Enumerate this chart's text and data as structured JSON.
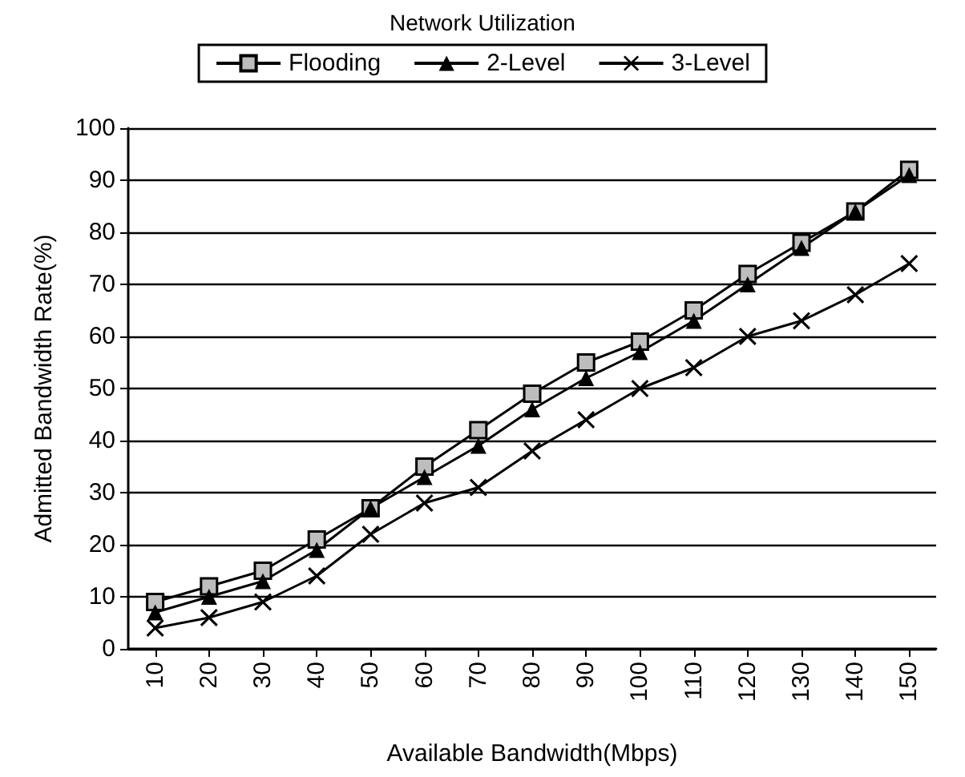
{
  "chart_data": {
    "type": "line",
    "title": "Network Utilization",
    "xlabel": "Available Bandwidth(Mbps)",
    "ylabel": "Admitted Bandwidth Rate(%)",
    "categories": [
      "10",
      "20",
      "30",
      "40",
      "50",
      "60",
      "70",
      "80",
      "90",
      "100",
      "110",
      "120",
      "130",
      "140",
      "150"
    ],
    "series": [
      {
        "name": "Flooding",
        "color": "#000000",
        "marker": "square",
        "values": [
          9,
          12,
          15,
          21,
          27,
          35,
          42,
          49,
          55,
          59,
          65,
          72,
          78,
          84,
          92
        ]
      },
      {
        "name": "2-Level",
        "color": "#000000",
        "marker": "triangle",
        "values": [
          7,
          10,
          13,
          19,
          27,
          33,
          39,
          46,
          52,
          57,
          63,
          70,
          77,
          84,
          91
        ]
      },
      {
        "name": "3-Level",
        "color": "#000000",
        "marker": "cross",
        "values": [
          4,
          6,
          9,
          14,
          22,
          28,
          31,
          38,
          44,
          50,
          54,
          60,
          63,
          68,
          74
        ]
      }
    ],
    "ylim": [
      0,
      100
    ],
    "yticks": [
      0,
      10,
      20,
      30,
      40,
      50,
      60,
      70,
      80,
      90,
      100
    ],
    "grid": "y",
    "legend": "top",
    "line_style": "solid"
  }
}
